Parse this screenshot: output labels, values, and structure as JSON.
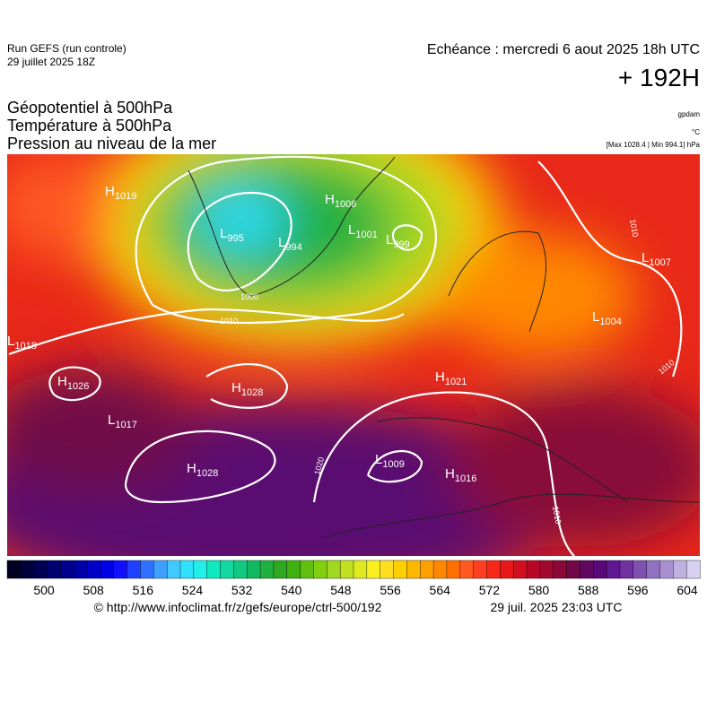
{
  "header": {
    "run": "Run GEFS (run controle)",
    "run_date": "29 juillet 2025 18Z",
    "valid": "Echéance : mercredi 6 aout 2025 18h UTC",
    "lead": "+ 192H",
    "titles": [
      "Géopotentiel à 500hPa",
      "Température à 500hPa",
      "Pression au niveau de la mer"
    ],
    "units": [
      "gpdam",
      "°C",
      "[Max 1028.4 | Min 994.1] hPa"
    ]
  },
  "map": {
    "centers": [
      {
        "letter": "H",
        "value": "1019"
      },
      {
        "letter": "H",
        "value": "1006"
      },
      {
        "letter": "L",
        "value": "995"
      },
      {
        "letter": "L",
        "value": "994"
      },
      {
        "letter": "L",
        "value": "1001"
      },
      {
        "letter": "L",
        "value": "999"
      },
      {
        "letter": "L",
        "value": "1007"
      },
      {
        "letter": "L",
        "value": "1004"
      },
      {
        "letter": "L",
        "value": "1018"
      },
      {
        "letter": "H",
        "value": "1026"
      },
      {
        "letter": "H",
        "value": "1028"
      },
      {
        "letter": "H",
        "value": "1021"
      },
      {
        "letter": "L",
        "value": "1017"
      },
      {
        "letter": "H",
        "value": "1028"
      },
      {
        "letter": "L",
        "value": "1009"
      },
      {
        "letter": "H",
        "value": "1016"
      }
    ],
    "isobar_labels": [
      "1000",
      "1010",
      "1020",
      "1010",
      "1010",
      "1010"
    ]
  },
  "colorbar": {
    "colors": [
      "#000020",
      "#00003a",
      "#000055",
      "#000070",
      "#00008c",
      "#0000a8",
      "#0000c8",
      "#0000e6",
      "#1010ff",
      "#2040ff",
      "#3070ff",
      "#40a0ff",
      "#40c8ff",
      "#30e0ff",
      "#20f0e8",
      "#10e8c0",
      "#10d8a0",
      "#10c880",
      "#10b860",
      "#20b040",
      "#30a820",
      "#40b010",
      "#60c010",
      "#80d010",
      "#a0d820",
      "#c0e020",
      "#e0e820",
      "#f8f020",
      "#ffe020",
      "#ffd000",
      "#ffb800",
      "#ffa000",
      "#ff8800",
      "#ff7000",
      "#ff5820",
      "#ff4020",
      "#f82818",
      "#e81818",
      "#d01020",
      "#b80828",
      "#a00830",
      "#880838",
      "#700848",
      "#600860",
      "#580878",
      "#601890",
      "#7030a0",
      "#8050b0",
      "#9070c0",
      "#a890d0",
      "#c0b0e0",
      "#d8d0f0"
    ],
    "ticks": [
      500,
      508,
      516,
      524,
      532,
      540,
      548,
      556,
      564,
      572,
      580,
      588,
      596,
      604
    ]
  },
  "footer": {
    "source": "© http://www.infoclimat.fr/z/gefs/europe/ctrl-500/192",
    "generated": "29 juil. 2025 23:03 UTC"
  }
}
